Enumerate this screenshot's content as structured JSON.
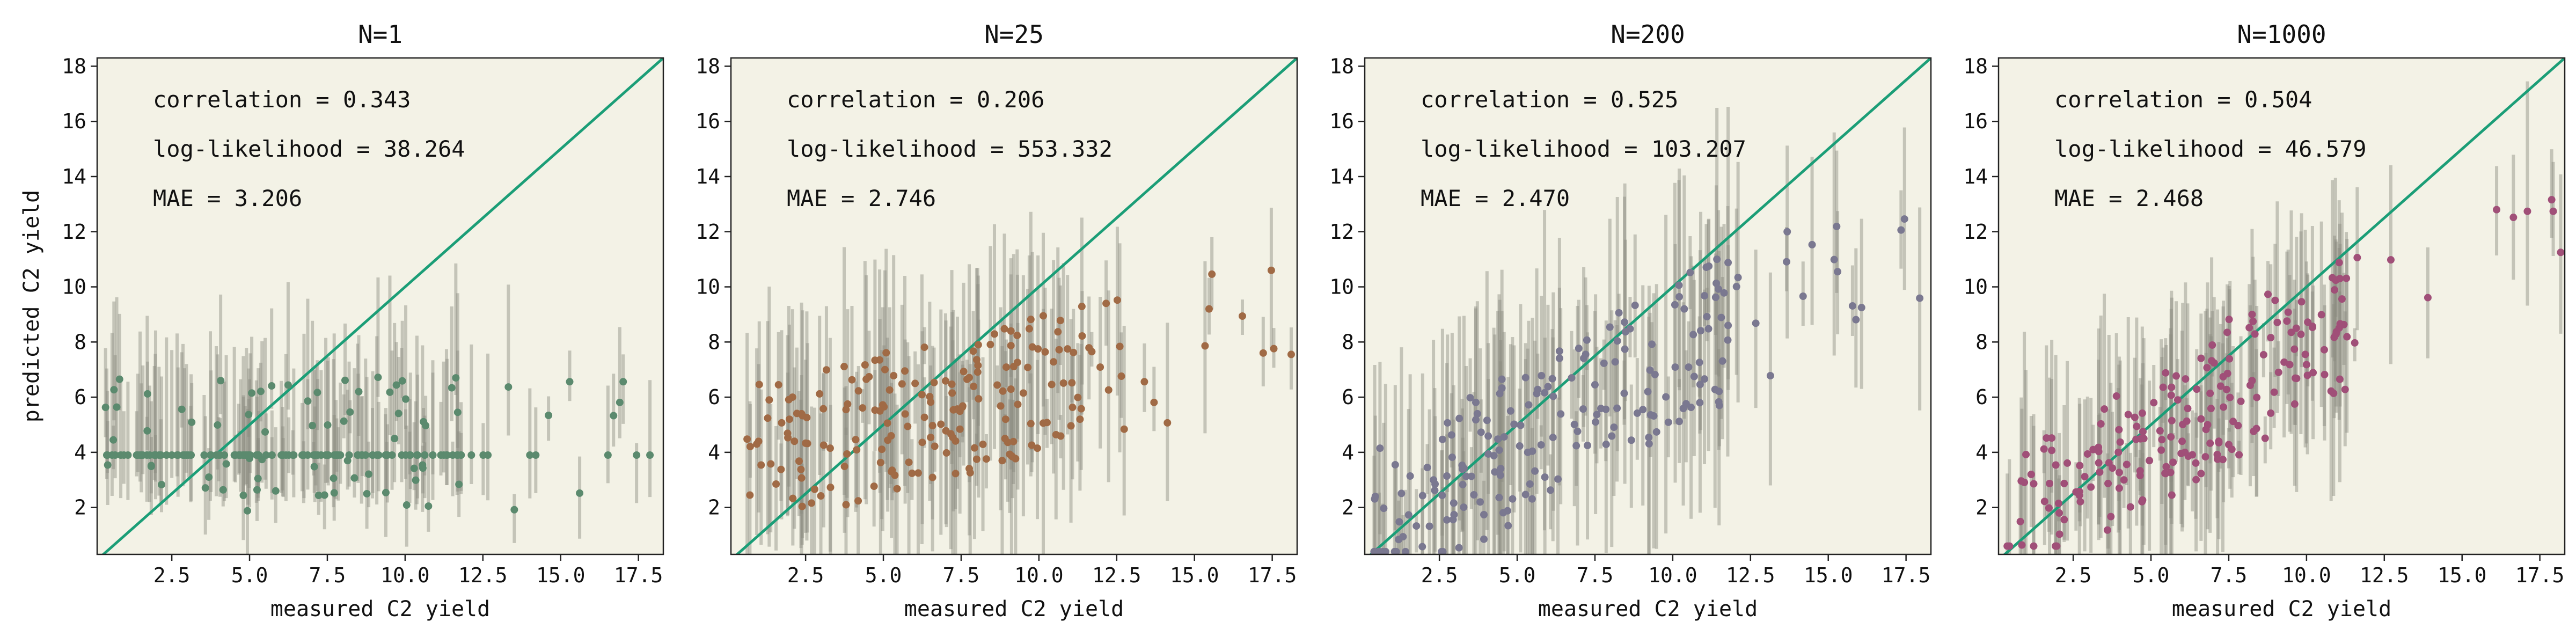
{
  "colors": {
    "panel_bg": "#f3f2e6",
    "identity_line": "#1b9e77",
    "error_bar": "#8c8c80",
    "axis": "#222222",
    "points": [
      "#5b8a6e",
      "#a06a45",
      "#7a7890",
      "#a04f78"
    ]
  },
  "chart_data": [
    {
      "type": "scatter",
      "title": "N=1",
      "xlabel": "measured C2 yield",
      "ylabel": "predicted C2 yield",
      "xlim": [
        0.1,
        18.3
      ],
      "ylim": [
        0.3,
        18.3
      ],
      "x_ticks": [
        "2.5",
        "5.0",
        "7.5",
        "10.0",
        "12.5",
        "15.0",
        "17.5"
      ],
      "y_ticks": [
        "2",
        "4",
        "6",
        "8",
        "10",
        "12",
        "14",
        "16",
        "18"
      ],
      "grid": false,
      "identity_line": true,
      "annotations": [
        "correlation = 0.343",
        "log-likelihood = 38.264",
        "MAE = 3.206"
      ]
    },
    {
      "type": "scatter",
      "title": "N=25",
      "xlabel": "measured C2 yield",
      "ylabel": "",
      "xlim": [
        0.1,
        18.3
      ],
      "ylim": [
        0.3,
        18.3
      ],
      "x_ticks": [
        "2.5",
        "5.0",
        "7.5",
        "10.0",
        "12.5",
        "15.0",
        "17.5"
      ],
      "y_ticks": [
        "2",
        "4",
        "6",
        "8",
        "10",
        "12",
        "14",
        "16",
        "18"
      ],
      "grid": false,
      "identity_line": true,
      "annotations": [
        "correlation = 0.206",
        "log-likelihood = 553.332",
        "MAE = 2.746"
      ]
    },
    {
      "type": "scatter",
      "title": "N=200",
      "xlabel": "measured C2 yield",
      "ylabel": "",
      "xlim": [
        0.1,
        18.3
      ],
      "ylim": [
        0.3,
        18.3
      ],
      "x_ticks": [
        "2.5",
        "5.0",
        "7.5",
        "10.0",
        "12.5",
        "15.0",
        "17.5"
      ],
      "y_ticks": [
        "2",
        "4",
        "6",
        "8",
        "10",
        "12",
        "14",
        "16",
        "18"
      ],
      "grid": false,
      "identity_line": true,
      "annotations": [
        "correlation = 0.525",
        "log-likelihood = 103.207",
        "MAE = 2.470"
      ]
    },
    {
      "type": "scatter",
      "title": "N=1000",
      "xlabel": "measured C2 yield",
      "ylabel": "",
      "xlim": [
        0.1,
        18.3
      ],
      "ylim": [
        0.3,
        18.3
      ],
      "x_ticks": [
        "2.5",
        "5.0",
        "7.5",
        "10.0",
        "12.5",
        "15.0",
        "17.5"
      ],
      "y_ticks": [
        "2",
        "4",
        "6",
        "8",
        "10",
        "12",
        "14",
        "16",
        "18"
      ],
      "grid": false,
      "identity_line": true,
      "annotations": [
        "correlation = 0.504",
        "log-likelihood = 46.579",
        "MAE = 2.468"
      ]
    }
  ]
}
